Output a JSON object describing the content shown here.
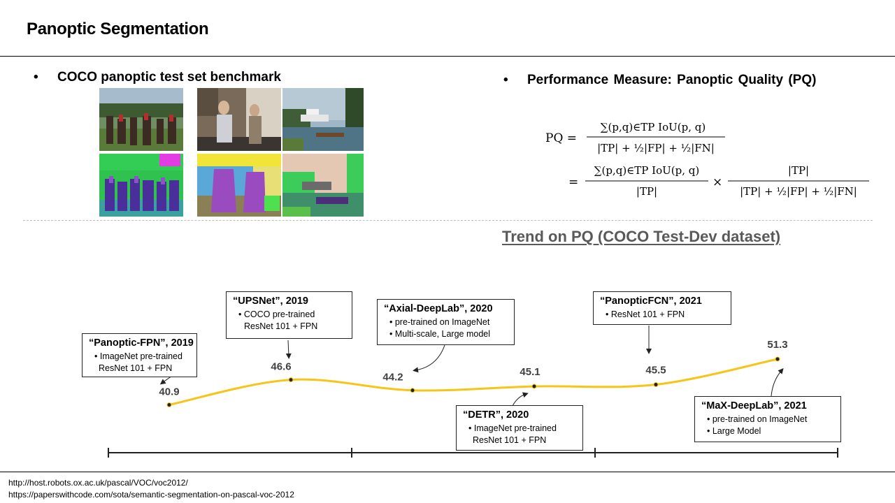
{
  "header": {
    "title": "Panoptic Segmentation"
  },
  "left_section": {
    "bullet": "COCO panoptic test set benchmark",
    "image_grid": {
      "rows": 2,
      "cols": 3,
      "description_icon": "sample-image-grid"
    }
  },
  "right_section": {
    "bullet": "Performance Measure: Panoptic Quality (PQ)",
    "formula": {
      "lhs": "PQ =",
      "line1_num": "∑(p,q)∈TP IoU(p, q)",
      "line1_den": "|TP| + ½|FP| + ½|FN|",
      "eq": "=",
      "line2_num1": "∑(p,q)∈TP IoU(p, q)",
      "line2_den1": "|TP|",
      "times": "×",
      "line2_num2": "|TP|",
      "line2_den2": "|TP| + ½|FP| + ½|FN|"
    }
  },
  "trend": {
    "title": "Trend on PQ (COCO Test-Dev dataset)"
  },
  "chart_data": {
    "type": "line",
    "title": "Trend on PQ (COCO Test-Dev dataset)",
    "xlabel": "",
    "ylabel": "",
    "line_color": "#f5c518",
    "categories": [
      "Panoptic-FPN 2019",
      "UPSNet 2019",
      "Axial-DeepLab 2020",
      "DETR 2020",
      "PanopticFCN 2021",
      "MaX-DeepLab 2021"
    ],
    "values": [
      40.9,
      46.6,
      44.2,
      45.1,
      45.5,
      51.3
    ],
    "value_labels": [
      "40.9",
      "46.6",
      "44.2",
      "45.1",
      "45.5",
      "51.3"
    ],
    "annotations": [
      {
        "title": "“Panoptic-FPN”, 2019",
        "lines": [
          "• ImageNet pre-trained",
          "ResNet 101 + FPN"
        ]
      },
      {
        "title": "“UPSNet”, 2019",
        "lines": [
          "• COCO pre-trained",
          "ResNet 101 + FPN"
        ]
      },
      {
        "title": "“Axial-DeepLab”, 2020",
        "lines": [
          "• pre-trained on ImageNet",
          "• Multi-scale, Large model"
        ]
      },
      {
        "title": "“DETR”, 2020",
        "lines": [
          "• ImageNet pre-trained",
          "ResNet 101 + FPN"
        ]
      },
      {
        "title": "“PanopticFCN”, 2021",
        "lines": [
          "• ResNet 101 + FPN"
        ]
      },
      {
        "title": "“MaX-DeepLab”, 2021",
        "lines": [
          "• pre-trained on ImageNet",
          "• Large Model"
        ]
      }
    ]
  },
  "footer": {
    "ref1": "http://host.robots.ox.ac.uk/pascal/VOC/voc2012/",
    "ref2": "https://paperswithcode.com/sota/semantic-segmentation-on-pascal-voc-2012"
  }
}
